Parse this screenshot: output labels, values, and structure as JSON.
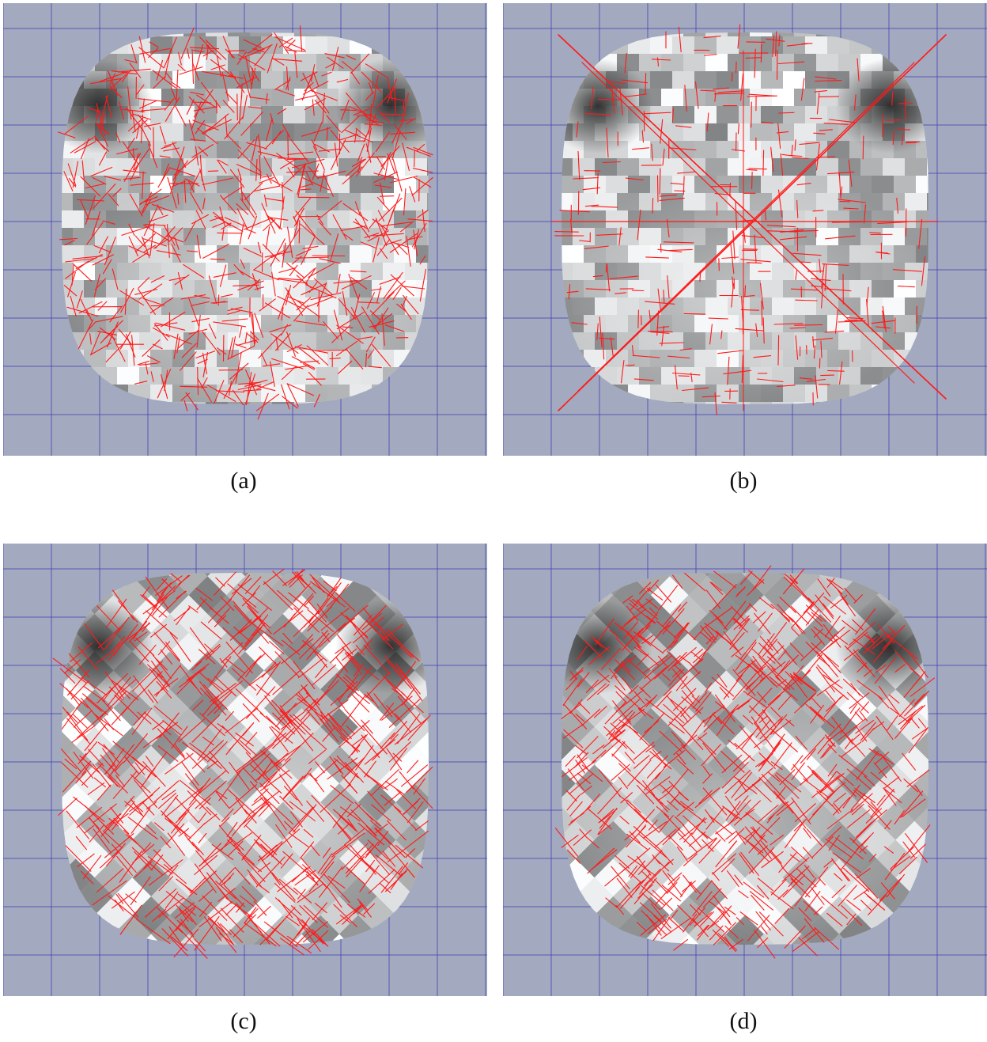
{
  "figure": {
    "panels": [
      {
        "id": "a",
        "caption": "(a)",
        "pattern": "blocky-random"
      },
      {
        "id": "b",
        "caption": "(b)",
        "pattern": "blocky-cross"
      },
      {
        "id": "c",
        "caption": "(c)",
        "pattern": "diagonal-weave-a"
      },
      {
        "id": "d",
        "caption": "(d)",
        "pattern": "diagonal-weave-b"
      }
    ]
  },
  "colors": {
    "background": "#a3a9bf",
    "grid_lines": "#3b3fb0",
    "vector_lines": "#ff1a1a",
    "shade_dark": "#2a2a2a",
    "shade_light": "#f2f4f4"
  },
  "icons": {
    "line_glyph": "red-vector-line-icon"
  }
}
